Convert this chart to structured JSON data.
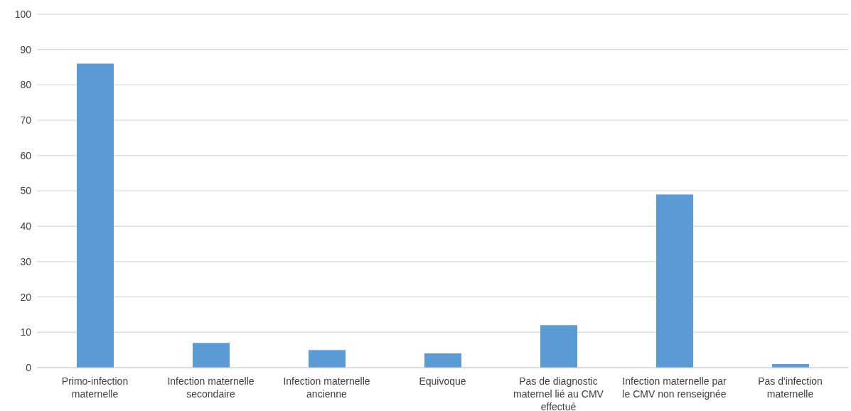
{
  "chart_data": {
    "type": "bar",
    "categories": [
      "Primo-infection maternelle",
      "Infection maternelle secondaire",
      "Infection maternelle ancienne",
      "Equivoque",
      "Pas de diagnostic maternel lié au CMV effectué",
      "Infection maternelle par le CMV non renseignée",
      "Pas d'infection maternelle"
    ],
    "values": [
      86,
      7,
      5,
      4,
      12,
      49,
      1
    ],
    "color": "#5b9bd5",
    "ylim": [
      0,
      100
    ],
    "yticks": [
      0,
      10,
      20,
      30,
      40,
      50,
      60,
      70,
      80,
      90,
      100
    ],
    "grid": "y",
    "legend": false
  }
}
